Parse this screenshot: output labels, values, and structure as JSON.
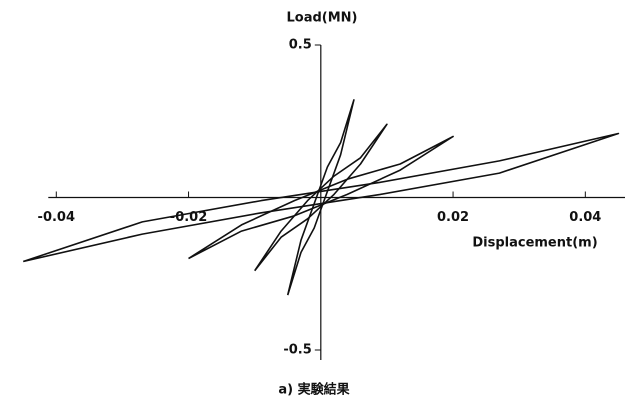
{
  "chart_data": {
    "type": "line",
    "xlabel": "Displacement(m)",
    "ylabel": "Load(MN)",
    "caption": "a) 実験結果",
    "xlim": [
      -0.047,
      0.046
    ],
    "ylim": [
      -0.5,
      0.5
    ],
    "xticks": [
      -0.04,
      -0.02,
      0.02,
      0.04
    ],
    "yticks": [
      -0.5,
      0.5
    ],
    "series": [
      {
        "color": "#111111",
        "x": [
          -0.005,
          -0.003,
          -0.001,
          0.001,
          0.003,
          0.005,
          0.003,
          0.001,
          -0.001,
          -0.003,
          -0.005
        ],
        "values": [
          -0.32,
          -0.18,
          -0.1,
          0.02,
          0.14,
          0.32,
          0.18,
          0.1,
          -0.02,
          -0.14,
          -0.32
        ]
      },
      {
        "color": "#111111",
        "x": [
          -0.01,
          -0.006,
          -0.002,
          0.002,
          0.006,
          0.01,
          0.006,
          0.002,
          -0.002,
          -0.006,
          -0.01
        ],
        "values": [
          -0.24,
          -0.13,
          -0.07,
          0.01,
          0.11,
          0.24,
          0.13,
          0.07,
          -0.01,
          -0.11,
          -0.24
        ]
      },
      {
        "color": "#111111",
        "x": [
          -0.02,
          -0.012,
          -0.004,
          0.004,
          0.012,
          0.02,
          0.012,
          0.004,
          -0.004,
          -0.012,
          -0.02
        ],
        "values": [
          -0.2,
          -0.11,
          -0.06,
          0.01,
          0.09,
          0.2,
          0.11,
          0.06,
          -0.01,
          -0.09,
          -0.2
        ]
      },
      {
        "color": "#111111",
        "x": [
          -0.045,
          -0.027,
          -0.009,
          0.009,
          0.027,
          0.045,
          0.027,
          0.009,
          -0.009,
          -0.027,
          -0.045
        ],
        "values": [
          -0.21,
          -0.12,
          -0.05,
          0.01,
          0.08,
          0.21,
          0.12,
          0.05,
          -0.01,
          -0.08,
          -0.21
        ]
      }
    ]
  }
}
